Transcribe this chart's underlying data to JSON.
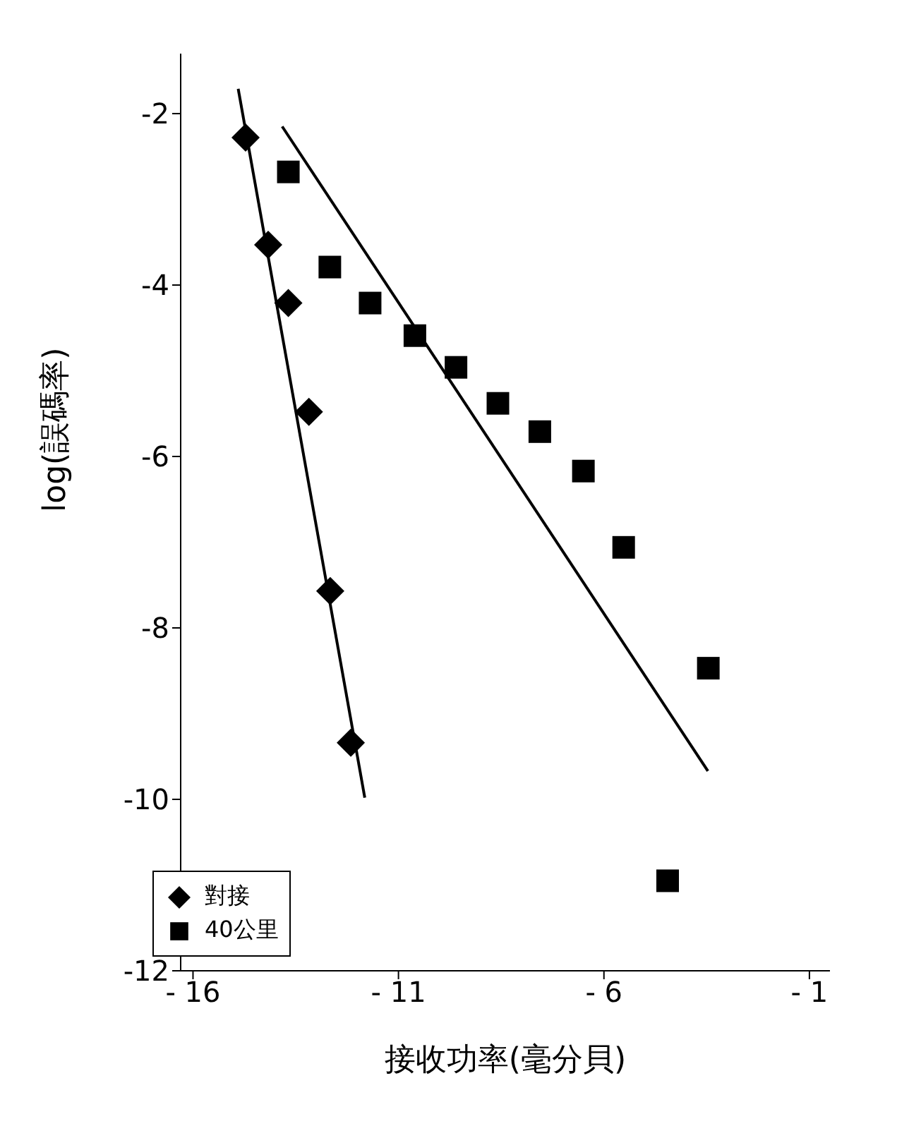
{
  "chart_data": {
    "type": "scatter",
    "xlabel": "接收功率(毫分貝)",
    "ylabel": "log(誤碼率)",
    "xlim": [
      -16.3,
      -0.5
    ],
    "xticks": [
      -16,
      -11,
      -6,
      -1
    ],
    "ylim": [
      -12,
      -1.3
    ],
    "yticks": [
      -12,
      -10,
      -8,
      -6,
      -4,
      -2
    ],
    "grid": false,
    "legend": "bottom left",
    "series": [
      {
        "name": "對接",
        "color": "#000000",
        "marker": "diamond",
        "x": [
          -14.72,
          -14.17,
          -13.68,
          -13.18,
          -12.66,
          -12.16
        ],
        "values": [
          -2.28,
          -3.53,
          -4.21,
          -5.48,
          -7.57,
          -9.34
        ]
      },
      {
        "name": "40公里",
        "color": "#000000",
        "marker": "square",
        "x": [
          -13.68,
          -12.67,
          -11.69,
          -10.6,
          -9.6,
          -8.58,
          -7.56,
          -6.5,
          -5.52,
          -4.45,
          -3.46
        ],
        "values": [
          -2.68,
          -3.79,
          -4.21,
          -4.59,
          -4.96,
          -5.38,
          -5.71,
          -6.17,
          -7.06,
          -10.95,
          -8.47
        ]
      },
      {
        "type": "line",
        "color": "#000000",
        "marker": "none",
        "x": [
          -14.9,
          -11.82
        ],
        "values": [
          -1.71,
          -9.98
        ]
      },
      {
        "type": "line",
        "color": "#000000",
        "marker": "none",
        "x": [
          -13.83,
          -3.47
        ],
        "values": [
          -2.15,
          -9.67
        ]
      }
    ]
  }
}
